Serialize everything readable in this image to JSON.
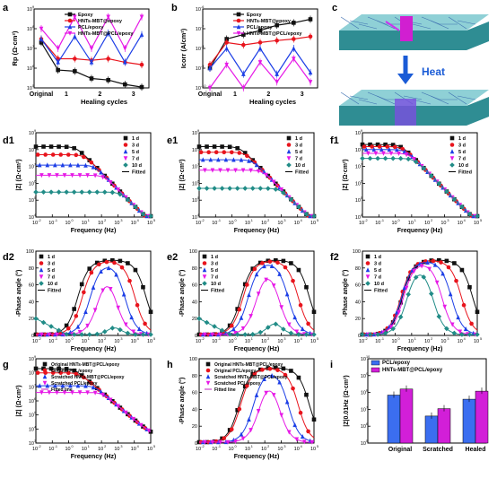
{
  "colors": {
    "black": "#111111",
    "red": "#e8141d",
    "blue": "#1c3ee6",
    "magenta": "#e619e6",
    "teal": "#218c87",
    "purple": "#c21fc2"
  },
  "panel_labels": [
    "a",
    "b",
    "c",
    "d1",
    "e1",
    "f1",
    "d2",
    "e2",
    "f2",
    "g",
    "h",
    "i"
  ],
  "shared": {
    "freq_xlabel": "Frequency (Hz)",
    "z_ylabel": "|Z| (Ω·cm²)",
    "phase_ylabel": "-Phase angle (°)",
    "day_legend": [
      "1 d",
      "3 d",
      "5 d",
      "7 d",
      "10 d",
      "Fitted"
    ],
    "heal_xlabel": "Healing cycles",
    "heal_legend": [
      "Epoxy",
      "HNTs-MBT@epoxy",
      "PCL/epoxy",
      "HNTs-MBT@PCL/epoxy"
    ],
    "heal_xticks": [
      "Original",
      "1",
      "2",
      "3"
    ]
  },
  "schematic": {
    "heat_label": "Heat"
  },
  "chart_data": [
    {
      "id": "a",
      "type": "line",
      "ylabel": "Rp (Ω·cm²)",
      "xlabel": "Healing cycles",
      "ylog": true,
      "ylim": [
        100000.0,
        1000000000.0
      ],
      "x": [
        "Original",
        "1a",
        "1b",
        "2a",
        "2b",
        "3a",
        "3b"
      ],
      "series": [
        {
          "name": "Epoxy",
          "values": [
            20000000.0,
            800000.0,
            700000.0,
            300000.0,
            250000.0,
            150000.0,
            110000.0
          ]
        },
        {
          "name": "HNTs-MBT@epoxy",
          "values": [
            30000000.0,
            3000000.0,
            3000000.0,
            2500000.0,
            3000000.0,
            2000000.0,
            1500000.0
          ]
        },
        {
          "name": "PCL/epoxy",
          "values": [
            30000000.0,
            2000000.0,
            40000000.0,
            2000000.0,
            60000000.0,
            2000000.0,
            50000000.0
          ]
        },
        {
          "name": "HNTs-MBT@PCL/epoxy",
          "values": [
            100000000.0,
            10000000.0,
            400000000.0,
            10000000.0,
            400000000.0,
            10000000.0,
            400000000.0
          ]
        }
      ]
    },
    {
      "id": "b",
      "type": "line",
      "ylabel": "Icorr (A/cm²)",
      "xlabel": "Healing cycles",
      "ylog": true,
      "ylim": [
        1e-10,
        1e-06
      ],
      "x": [
        "Original",
        "1a",
        "1b",
        "2a",
        "2b",
        "3a",
        "3b"
      ],
      "series": [
        {
          "name": "Epoxy",
          "values": [
            1e-09,
            3e-08,
            5e-08,
            8e-08,
            1.5e-07,
            2e-07,
            3e-07
          ]
        },
        {
          "name": "HNTs-MBT@epoxy",
          "values": [
            1.5e-09,
            2e-08,
            1.5e-08,
            2e-08,
            2.5e-08,
            3e-08,
            4e-08
          ]
        },
        {
          "name": "PCL/epoxy",
          "values": [
            1e-09,
            1e-08,
            5e-10,
            1e-08,
            5e-10,
            1e-08,
            6e-10
          ]
        },
        {
          "name": "HNTs-MBT@PCL/epoxy",
          "values": [
            1e-10,
            1.5e-09,
            1e-10,
            2e-09,
            2e-10,
            3e-09,
            2e-10
          ]
        }
      ]
    },
    {
      "id": "d1",
      "type": "line",
      "ylabel": "|Z| (Ω·cm²)",
      "xlabel": "Frequency (Hz)",
      "xlim": [
        0.01,
        100000
      ],
      "ylim": [
        10000.0,
        1000000000.0
      ],
      "series_low": [
        150000000.0,
        50000000.0,
        12000000.0,
        3000000.0,
        300000.0
      ]
    },
    {
      "id": "e1",
      "type": "line",
      "ylabel": "|Z| (Ω·cm²)",
      "xlabel": "Frequency (Hz)",
      "xlim": [
        0.01,
        100000
      ],
      "ylim": [
        10000.0,
        1000000000.0
      ],
      "series_low": [
        150000000.0,
        70000000.0,
        25000000.0,
        6000000.0,
        500000.0
      ]
    },
    {
      "id": "f1",
      "type": "line",
      "ylabel": "|Z| (Ω·cm²)",
      "xlabel": "Frequency (Hz)",
      "xlim": [
        0.01,
        100000
      ],
      "ylim": [
        10000.0,
        1000000000.0
      ],
      "series_low": [
        200000000.0,
        150000000.0,
        100000000.0,
        60000000.0,
        30000000.0
      ]
    },
    {
      "id": "d2",
      "type": "line",
      "ylabel": "-Phase angle (°)",
      "xlabel": "Frequency (Hz)",
      "ylim": [
        0,
        100
      ]
    },
    {
      "id": "e2",
      "type": "line",
      "ylabel": "-Phase angle (°)",
      "xlabel": "Frequency (Hz)",
      "ylim": [
        0,
        100
      ]
    },
    {
      "id": "f2",
      "type": "line",
      "ylabel": "-Phase angle (°)",
      "xlabel": "Frequency (Hz)",
      "ylim": [
        0,
        100
      ]
    },
    {
      "id": "g",
      "type": "line",
      "ylabel": "|Z| (Ω·cm²)",
      "xlabel": "Frequency (Hz)",
      "ylim": [
        1000.0,
        1000000000.0
      ],
      "legend": [
        "Original HNTs-MBT@PCL/epoxy",
        "Original PCL/epoxy",
        "Scratched HNTs-MBT@PCL/epoxy",
        "Scratched PCL/epoxy",
        "Fitted line"
      ],
      "series_low": [
        200000000.0,
        100000000.0,
        12000000.0,
        4000000.0
      ]
    },
    {
      "id": "h",
      "type": "line",
      "ylabel": "-Phase angle (°)",
      "xlabel": "Frequency (Hz)",
      "ylim": [
        0,
        100
      ],
      "legend": [
        "Original HNTs-MBT@PCL/epoxy",
        "Original PCL/epoxy",
        "Scratched HNTs-MBT@PCL/epoxy",
        "Scratched PCL/epoxy",
        "Fitted line"
      ]
    },
    {
      "id": "i",
      "type": "bar",
      "ylabel": "|Z|0.01Hz (Ω·cm²)",
      "ylog": true,
      "ylim": [
        100000.0,
        10000000000.0
      ],
      "categories": [
        "Original",
        "Scratched",
        "Healed"
      ],
      "series": [
        {
          "name": "PCL/epoxy",
          "values": [
            70000000.0,
            4000000.0,
            40000000.0
          ]
        },
        {
          "name": "HNTs-MBT@PCL/epoxy",
          "values": [
            160000000.0,
            11000000.0,
            120000000.0
          ]
        }
      ]
    }
  ]
}
